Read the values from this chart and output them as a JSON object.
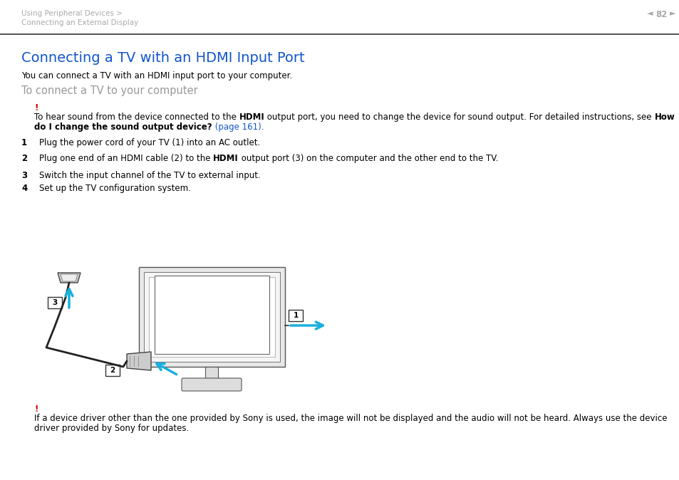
{
  "bg_color": "#ffffff",
  "header_text1": "Using Peripheral Devices >",
  "header_text2": "Connecting an External Display",
  "page_num": "82",
  "header_color": "#aaaaaa",
  "sep_color": "#333333",
  "title": "Connecting a TV with an HDMI Input Port",
  "title_color": "#1155cc",
  "title_fontsize": 14,
  "intro": "You can connect a TV with an HDMI input port to your computer.",
  "subtitle": "To connect a TV to your computer",
  "subtitle_color": "#999999",
  "subtitle_fontsize": 10.5,
  "exclaim_color": "#cc0000",
  "body_fontsize": 8.5,
  "small_fontsize": 7.5,
  "arrow_color": "#1aafdc",
  "text_color": "#000000",
  "link_color": "#1155cc",
  "diagram_line_color": "#333333",
  "step1_text": "Plug the power cord of your TV (1) into an AC outlet.",
  "step2_pre": "Plug one end of an HDMI cable (2) to the ",
  "step2_bold": "HDMI",
  "step2_post": " output port (3) on the computer and the other end to the TV.",
  "step3_text": "Switch the input channel of the TV to external input.",
  "step4_text": "Set up the TV configuration system.",
  "note1_pre": "To hear sound from the device connected to the ",
  "note1_hdmi": "HDMI",
  "note1_mid": " output port, you need to change the device for sound output. For detailed instructions, see ",
  "note1_how": "How",
  "note1_line2_bold": "do I change the sound output device?",
  "note1_line2_link": " (page 161).",
  "note2_line1": "If a device driver other than the one provided by Sony is used, the image will not be displayed and the audio will not be heard. Always use the device",
  "note2_line2": "driver provided by Sony for updates."
}
